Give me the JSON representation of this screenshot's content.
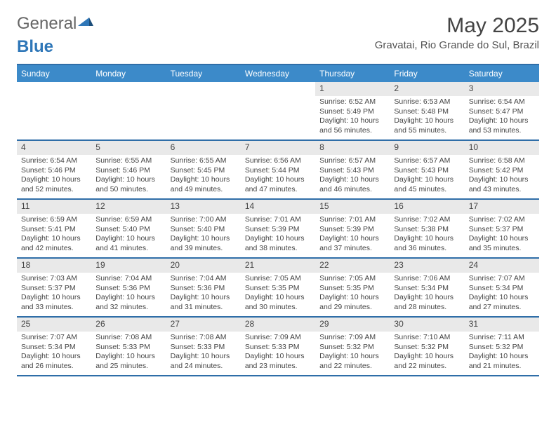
{
  "logo": {
    "text_a": "General",
    "text_b": "Blue"
  },
  "title": "May 2025",
  "location": "Gravatai, Rio Grande do Sul, Brazil",
  "colors": {
    "header_bg": "#3c8ac9",
    "border": "#2f6ea8",
    "dayhead_bg": "#e9e9e9",
    "text": "#444444"
  },
  "weekdays": [
    "Sunday",
    "Monday",
    "Tuesday",
    "Wednesday",
    "Thursday",
    "Friday",
    "Saturday"
  ],
  "weeks": [
    [
      {
        "n": "",
        "sr": "",
        "ss": "",
        "dl": ""
      },
      {
        "n": "",
        "sr": "",
        "ss": "",
        "dl": ""
      },
      {
        "n": "",
        "sr": "",
        "ss": "",
        "dl": ""
      },
      {
        "n": "",
        "sr": "",
        "ss": "",
        "dl": ""
      },
      {
        "n": "1",
        "sr": "6:52 AM",
        "ss": "5:49 PM",
        "dl": "10 hours and 56 minutes."
      },
      {
        "n": "2",
        "sr": "6:53 AM",
        "ss": "5:48 PM",
        "dl": "10 hours and 55 minutes."
      },
      {
        "n": "3",
        "sr": "6:54 AM",
        "ss": "5:47 PM",
        "dl": "10 hours and 53 minutes."
      }
    ],
    [
      {
        "n": "4",
        "sr": "6:54 AM",
        "ss": "5:46 PM",
        "dl": "10 hours and 52 minutes."
      },
      {
        "n": "5",
        "sr": "6:55 AM",
        "ss": "5:46 PM",
        "dl": "10 hours and 50 minutes."
      },
      {
        "n": "6",
        "sr": "6:55 AM",
        "ss": "5:45 PM",
        "dl": "10 hours and 49 minutes."
      },
      {
        "n": "7",
        "sr": "6:56 AM",
        "ss": "5:44 PM",
        "dl": "10 hours and 47 minutes."
      },
      {
        "n": "8",
        "sr": "6:57 AM",
        "ss": "5:43 PM",
        "dl": "10 hours and 46 minutes."
      },
      {
        "n": "9",
        "sr": "6:57 AM",
        "ss": "5:43 PM",
        "dl": "10 hours and 45 minutes."
      },
      {
        "n": "10",
        "sr": "6:58 AM",
        "ss": "5:42 PM",
        "dl": "10 hours and 43 minutes."
      }
    ],
    [
      {
        "n": "11",
        "sr": "6:59 AM",
        "ss": "5:41 PM",
        "dl": "10 hours and 42 minutes."
      },
      {
        "n": "12",
        "sr": "6:59 AM",
        "ss": "5:40 PM",
        "dl": "10 hours and 41 minutes."
      },
      {
        "n": "13",
        "sr": "7:00 AM",
        "ss": "5:40 PM",
        "dl": "10 hours and 39 minutes."
      },
      {
        "n": "14",
        "sr": "7:01 AM",
        "ss": "5:39 PM",
        "dl": "10 hours and 38 minutes."
      },
      {
        "n": "15",
        "sr": "7:01 AM",
        "ss": "5:39 PM",
        "dl": "10 hours and 37 minutes."
      },
      {
        "n": "16",
        "sr": "7:02 AM",
        "ss": "5:38 PM",
        "dl": "10 hours and 36 minutes."
      },
      {
        "n": "17",
        "sr": "7:02 AM",
        "ss": "5:37 PM",
        "dl": "10 hours and 35 minutes."
      }
    ],
    [
      {
        "n": "18",
        "sr": "7:03 AM",
        "ss": "5:37 PM",
        "dl": "10 hours and 33 minutes."
      },
      {
        "n": "19",
        "sr": "7:04 AM",
        "ss": "5:36 PM",
        "dl": "10 hours and 32 minutes."
      },
      {
        "n": "20",
        "sr": "7:04 AM",
        "ss": "5:36 PM",
        "dl": "10 hours and 31 minutes."
      },
      {
        "n": "21",
        "sr": "7:05 AM",
        "ss": "5:35 PM",
        "dl": "10 hours and 30 minutes."
      },
      {
        "n": "22",
        "sr": "7:05 AM",
        "ss": "5:35 PM",
        "dl": "10 hours and 29 minutes."
      },
      {
        "n": "23",
        "sr": "7:06 AM",
        "ss": "5:34 PM",
        "dl": "10 hours and 28 minutes."
      },
      {
        "n": "24",
        "sr": "7:07 AM",
        "ss": "5:34 PM",
        "dl": "10 hours and 27 minutes."
      }
    ],
    [
      {
        "n": "25",
        "sr": "7:07 AM",
        "ss": "5:34 PM",
        "dl": "10 hours and 26 minutes."
      },
      {
        "n": "26",
        "sr": "7:08 AM",
        "ss": "5:33 PM",
        "dl": "10 hours and 25 minutes."
      },
      {
        "n": "27",
        "sr": "7:08 AM",
        "ss": "5:33 PM",
        "dl": "10 hours and 24 minutes."
      },
      {
        "n": "28",
        "sr": "7:09 AM",
        "ss": "5:33 PM",
        "dl": "10 hours and 23 minutes."
      },
      {
        "n": "29",
        "sr": "7:09 AM",
        "ss": "5:32 PM",
        "dl": "10 hours and 22 minutes."
      },
      {
        "n": "30",
        "sr": "7:10 AM",
        "ss": "5:32 PM",
        "dl": "10 hours and 22 minutes."
      },
      {
        "n": "31",
        "sr": "7:11 AM",
        "ss": "5:32 PM",
        "dl": "10 hours and 21 minutes."
      }
    ]
  ],
  "labels": {
    "sunrise": "Sunrise:",
    "sunset": "Sunset:",
    "daylight": "Daylight:"
  }
}
